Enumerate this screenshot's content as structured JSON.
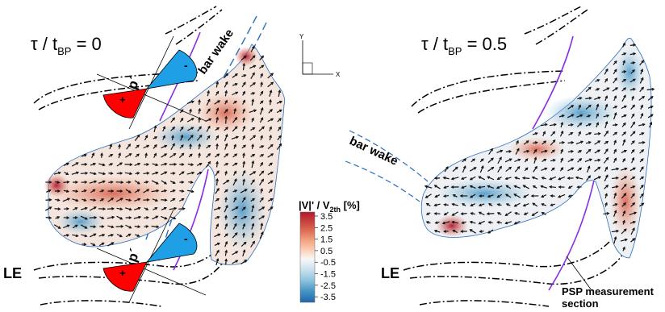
{
  "panels": [
    {
      "title_main": "τ / t",
      "title_sub": "BP",
      "title_val": " = 0"
    },
    {
      "title_main": "τ / t",
      "title_sub": "BP",
      "title_val": " = 0.5"
    }
  ],
  "labels": {
    "le": "LE",
    "bar_wake": "bar wake",
    "p_prime": "p´",
    "plus": "+",
    "minus": "-",
    "psp_line1": "PSP measurement",
    "psp_line2": "section"
  },
  "axes_icon": {
    "y": "Y",
    "x": "X"
  },
  "colorbar": {
    "title_a": "|V|' / V",
    "title_sub": "2th",
    "title_b": " [%]",
    "ticks": [
      "3.5",
      "2.5",
      "1.5",
      "0.5",
      "-0.5",
      "-1.5",
      "-2.5",
      "-3.5"
    ],
    "colors": [
      "#b2182b",
      "#d6604d",
      "#f4a582",
      "#fddbc7",
      "#f7f7f7",
      "#d1e5f0",
      "#92c5de",
      "#4393c3",
      "#2166ac"
    ]
  },
  "colors": {
    "positive_lobe": "#ff0000",
    "negative_lobe": "#1e9fe6",
    "psp_line": "#8a2be2",
    "wake_line": "#2a6fbf"
  }
}
